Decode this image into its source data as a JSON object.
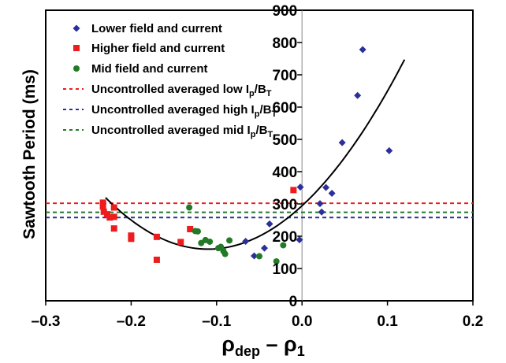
{
  "chart_data": {
    "type": "scatter",
    "ylabel": "Sawtooth Period (ms)",
    "xlabel": {
      "base1": "ρ",
      "sub1": "dep",
      "minus": " – ",
      "base2": "ρ",
      "sub2": "1"
    },
    "xlim": [
      -0.3,
      0.2
    ],
    "ylim": [
      0,
      900
    ],
    "x_ticks": [
      {
        "value": -0.3,
        "label": "–0.3"
      },
      {
        "value": -0.2,
        "label": "–0.2"
      },
      {
        "value": -0.1,
        "label": "–0.1"
      },
      {
        "value": 0.0,
        "label": "0.0"
      },
      {
        "value": 0.1,
        "label": "0.1"
      },
      {
        "value": 0.2,
        "label": "0.2"
      }
    ],
    "y_ticks": [
      {
        "value": 0,
        "label": "0"
      },
      {
        "value": 100,
        "label": "100"
      },
      {
        "value": 200,
        "label": "200"
      },
      {
        "value": 300,
        "label": "300"
      },
      {
        "value": 400,
        "label": "400"
      },
      {
        "value": 500,
        "label": "500"
      },
      {
        "value": 600,
        "label": "600"
      },
      {
        "value": 700,
        "label": "700"
      },
      {
        "value": 800,
        "label": "800"
      },
      {
        "value": 900,
        "label": "900"
      }
    ],
    "series": [
      {
        "name": "Lower field and current",
        "marker": "diamond",
        "color": "#2b2f9a",
        "points": [
          [
            0.071,
            778
          ],
          [
            0.065,
            636
          ],
          [
            0.102,
            465
          ],
          [
            0.047,
            490
          ],
          [
            0.035,
            333
          ],
          [
            0.028,
            351
          ],
          [
            0.023,
            275
          ],
          [
            0.021,
            301
          ],
          [
            -0.002,
            352
          ],
          [
            -0.003,
            189
          ],
          [
            -0.044,
            163
          ],
          [
            -0.056,
            139
          ],
          [
            -0.038,
            238
          ],
          [
            -0.066,
            184
          ]
        ]
      },
      {
        "name": "Higher field and current",
        "marker": "square",
        "color": "#ee1c1c",
        "points": [
          [
            -0.233,
            304
          ],
          [
            -0.233,
            292
          ],
          [
            -0.232,
            276
          ],
          [
            -0.228,
            268
          ],
          [
            -0.225,
            258
          ],
          [
            -0.22,
            260
          ],
          [
            -0.22,
            289
          ],
          [
            -0.22,
            224
          ],
          [
            -0.2,
            202
          ],
          [
            -0.2,
            192
          ],
          [
            -0.17,
            198
          ],
          [
            -0.17,
            127
          ],
          [
            -0.142,
            182
          ],
          [
            -0.131,
            222
          ],
          [
            -0.01,
            343
          ]
        ]
      },
      {
        "name": "Mid field and current",
        "marker": "circle",
        "color": "#237a26",
        "points": [
          [
            -0.132,
            289
          ],
          [
            -0.125,
            216
          ],
          [
            -0.122,
            215
          ],
          [
            -0.118,
            179
          ],
          [
            -0.113,
            188
          ],
          [
            -0.108,
            183
          ],
          [
            -0.098,
            163
          ],
          [
            -0.095,
            167
          ],
          [
            -0.092,
            154
          ],
          [
            -0.09,
            145
          ],
          [
            -0.085,
            187
          ],
          [
            -0.05,
            138
          ],
          [
            -0.03,
            122
          ],
          [
            -0.022,
            172
          ]
        ]
      }
    ],
    "fit_curve": {
      "color": "#000000",
      "x_range": [
        -0.23,
        0.12
      ],
      "vertex": [
        -0.11,
        160
      ],
      "quad_coeff": 11100
    },
    "reference_lines": [
      {
        "name": "Uncontrolled averaged low",
        "color": "#ee1c1c",
        "y": 302
      },
      {
        "name": "Uncontrolled averaged high",
        "color": "#2b2f9a",
        "y": 258
      },
      {
        "name": "Uncontrolled averaged mid",
        "color": "#237a26",
        "y": 274
      }
    ],
    "vertical_line": {
      "x": 0,
      "color": "#9a9a9a"
    },
    "legend": {
      "placement": "top-left",
      "items": [
        {
          "marker": "diamond",
          "color": "#2b2f9a",
          "text": "Lower field and current"
        },
        {
          "marker": "square",
          "color": "#ee1c1c",
          "text": "Higher field and current"
        },
        {
          "marker": "circle",
          "color": "#237a26",
          "text": "Mid field and current"
        },
        {
          "marker": "dash",
          "color": "#ee1c1c",
          "text": "Uncontrolled averaged low I",
          "sub1": "p",
          "mid": "/B",
          "sub2": "T"
        },
        {
          "marker": "dash",
          "color": "#2b2f9a",
          "text": "Uncontrolled averaged high I",
          "sub1": "p",
          "mid": "/B",
          "sub2": "T"
        },
        {
          "marker": "dash",
          "color": "#237a26",
          "text": "Uncontrolled averaged mid I",
          "sub1": "p",
          "mid": "/B",
          "sub2": "T"
        }
      ]
    }
  }
}
